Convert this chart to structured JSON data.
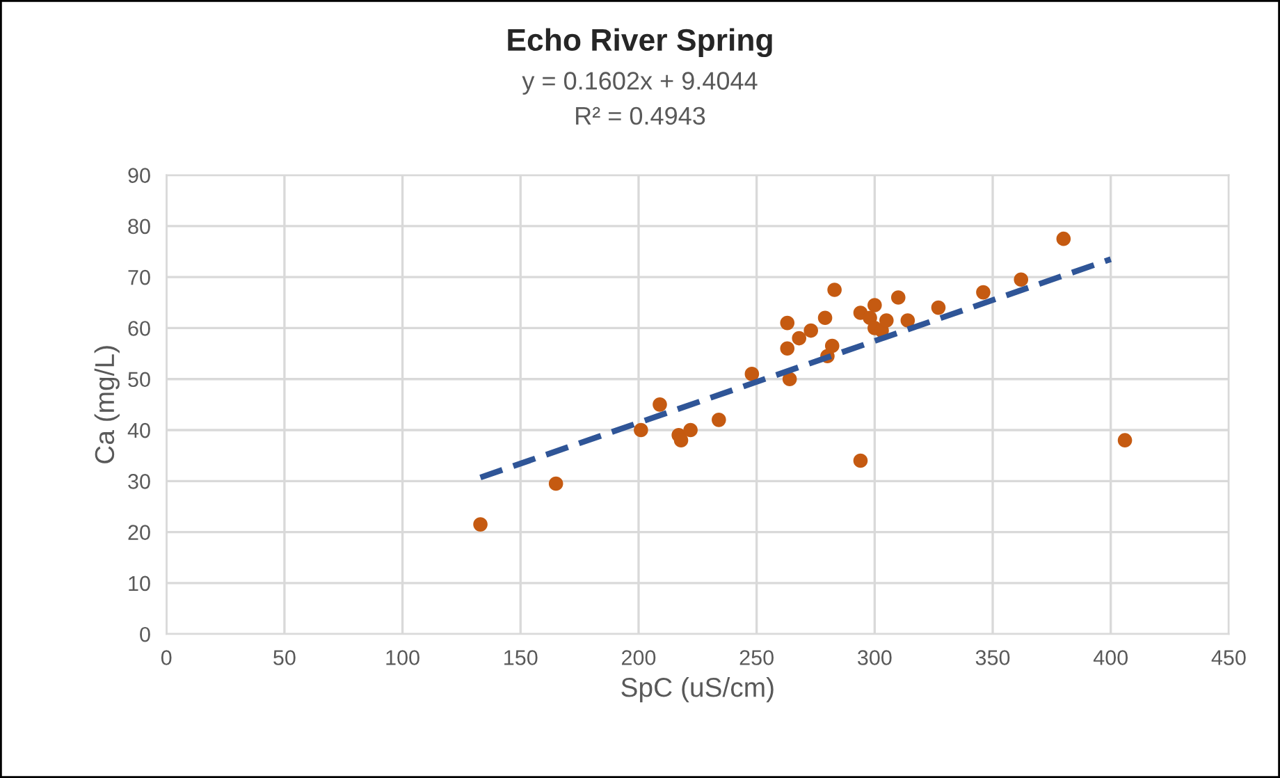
{
  "chart_data": {
    "type": "scatter",
    "title": "Echo River Spring",
    "xlabel": "SpC (uS/cm)",
    "ylabel": "Ca (mg/L)",
    "annotations": [
      "y = 0.1602x + 9.4044",
      "R² = 0.4943"
    ],
    "series": [
      {
        "color": "#c55a11",
        "marker": "circle",
        "x": [
          133,
          165,
          201,
          209,
          217,
          218,
          222,
          234,
          248,
          263,
          263,
          264,
          268,
          273,
          279,
          280,
          282,
          283,
          294,
          294,
          298,
          300,
          300,
          303,
          305,
          310,
          314,
          327,
          346,
          362,
          380,
          406
        ],
        "values": [
          21.5,
          29.5,
          40,
          45,
          39,
          38,
          40,
          42,
          51,
          61,
          56,
          50,
          58,
          59.5,
          62,
          54.5,
          56.5,
          67.5,
          34,
          63,
          62,
          64.5,
          60,
          59.5,
          61.5,
          66,
          61.5,
          64,
          67,
          69.5,
          77.5,
          38
        ]
      },
      {
        "type": "line",
        "color": "#2f5597",
        "line_style": "dashed",
        "marker": "none",
        "x": [
          133,
          400
        ],
        "values": [
          30.7,
          73.5
        ]
      }
    ],
    "xlim": [
      0,
      450
    ],
    "xticks": [
      0,
      50,
      100,
      150,
      200,
      250,
      300,
      350,
      400,
      450
    ],
    "ylim": [
      0,
      90
    ],
    "yticks": [
      0,
      10,
      20,
      30,
      40,
      50,
      60,
      70,
      80,
      90
    ],
    "grid": true
  }
}
